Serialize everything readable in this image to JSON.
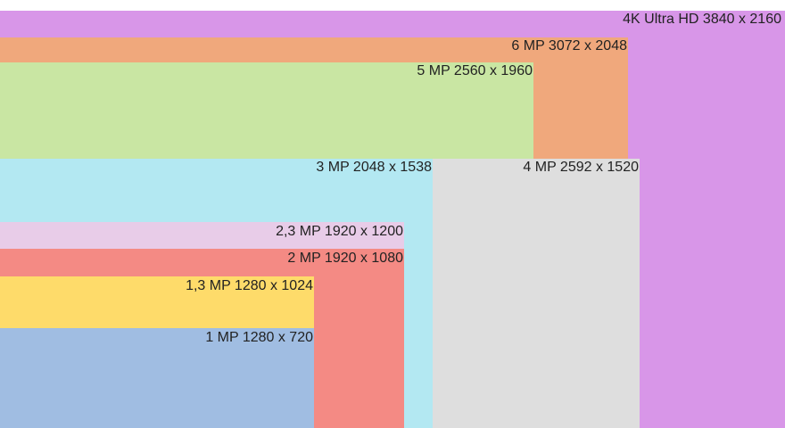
{
  "rectangles": [
    {
      "label": "4K Ultra HD 3840 x 2160"
    },
    {
      "label": "6 MP 3072 x 2048"
    },
    {
      "label": "5 MP 2560 x 1960"
    },
    {
      "label": "4 MP 2592 x 1520"
    },
    {
      "label": "3 MP 2048 x 1538"
    },
    {
      "label": "2,3 MP 1920 x 1200"
    },
    {
      "label": "2 MP 1920 x 1080"
    },
    {
      "label": "1,3 MP 1280 x 1024"
    },
    {
      "label": "1 MP 1280 x 720"
    }
  ]
}
